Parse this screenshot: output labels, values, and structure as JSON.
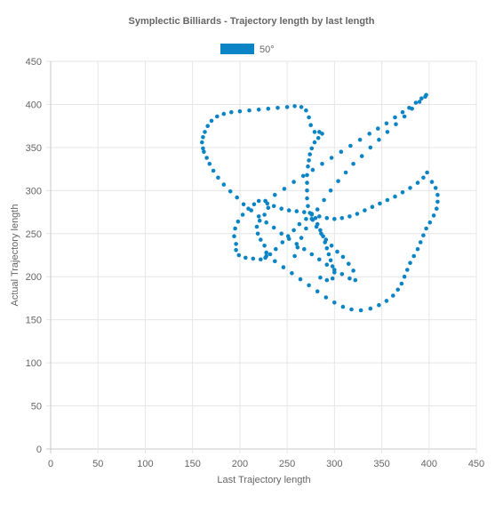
{
  "chart_data": {
    "type": "scatter",
    "title": "Symplectic Billiards - Trajectory length by last length",
    "xlabel": "Last Trajectory length",
    "ylabel": "Actual Trajectory length",
    "xlim": [
      0,
      450
    ],
    "ylim": [
      0,
      450
    ],
    "xticks": [
      "0",
      "50",
      "100",
      "150",
      "200",
      "250",
      "300",
      "350",
      "400",
      "450"
    ],
    "yticks": [
      "0",
      "50",
      "100",
      "150",
      "200",
      "250",
      "300",
      "350",
      "400",
      "450"
    ],
    "grid": true,
    "legend_position": "top",
    "colors": {
      "series": "#0b84c6"
    },
    "series": [
      {
        "name": "50°",
        "points": [
          [
            397,
            411
          ],
          [
            392,
            407
          ],
          [
            386,
            402
          ],
          [
            379,
            396
          ],
          [
            372,
            391
          ],
          [
            364,
            385
          ],
          [
            355,
            378
          ],
          [
            346,
            372
          ],
          [
            337,
            366
          ],
          [
            327,
            359
          ],
          [
            317,
            352
          ],
          [
            307,
            345
          ],
          [
            297,
            338
          ],
          [
            287,
            331
          ],
          [
            277,
            324
          ],
          [
            267,
            317
          ],
          [
            257,
            310
          ],
          [
            247,
            302
          ],
          [
            237,
            295
          ],
          [
            227,
            288
          ],
          [
            396,
            409
          ],
          [
            390,
            403
          ],
          [
            382,
            395
          ],
          [
            374,
            386
          ],
          [
            365,
            377
          ],
          [
            356,
            368
          ],
          [
            347,
            359
          ],
          [
            338,
            350
          ],
          [
            329,
            340
          ],
          [
            320,
            331
          ],
          [
            312,
            321
          ],
          [
            304,
            311
          ],
          [
            296,
            300
          ],
          [
            289,
            289
          ],
          [
            282,
            278
          ],
          [
            276,
            267
          ],
          [
            270,
            256
          ],
          [
            265,
            245
          ],
          [
            261,
            234
          ],
          [
            258,
            224
          ],
          [
            161,
            349
          ],
          [
            160,
            356
          ],
          [
            161,
            362
          ],
          [
            163,
            368
          ],
          [
            166,
            375
          ],
          [
            170,
            381
          ],
          [
            176,
            386
          ],
          [
            183,
            389
          ],
          [
            191,
            391
          ],
          [
            200,
            392
          ],
          [
            210,
            393
          ],
          [
            220,
            394
          ],
          [
            230,
            395
          ],
          [
            240,
            396
          ],
          [
            250,
            397
          ],
          [
            258,
            398
          ],
          [
            265,
            397
          ],
          [
            270,
            393
          ],
          [
            273,
            385
          ],
          [
            275,
            376
          ],
          [
            279,
            368
          ],
          [
            284,
            368
          ],
          [
            287,
            366
          ],
          [
            283,
            361
          ],
          [
            279,
            356
          ],
          [
            276,
            349
          ],
          [
            274,
            342
          ],
          [
            273,
            335
          ],
          [
            272,
            328
          ],
          [
            271,
            318
          ],
          [
            271,
            309
          ],
          [
            271,
            300
          ],
          [
            271,
            291
          ],
          [
            272,
            282
          ],
          [
            274,
            274
          ],
          [
            277,
            266
          ],
          [
            281,
            258
          ],
          [
            286,
            250
          ],
          [
            291,
            243
          ],
          [
            297,
            236
          ],
          [
            303,
            229
          ],
          [
            309,
            223
          ],
          [
            315,
            215
          ],
          [
            320,
            207
          ],
          [
            162,
            345
          ],
          [
            165,
            338
          ],
          [
            168,
            331
          ],
          [
            172,
            323
          ],
          [
            177,
            315
          ],
          [
            183,
            307
          ],
          [
            190,
            299
          ],
          [
            197,
            292
          ],
          [
            204,
            284
          ],
          [
            212,
            277
          ],
          [
            220,
            270
          ],
          [
            228,
            263
          ],
          [
            236,
            257
          ],
          [
            244,
            250
          ],
          [
            252,
            244
          ],
          [
            260,
            238
          ],
          [
            268,
            232
          ],
          [
            276,
            226
          ],
          [
            284,
            220
          ],
          [
            292,
            214
          ],
          [
            300,
            208
          ],
          [
            308,
            203
          ],
          [
            316,
            198
          ],
          [
            322,
            196
          ],
          [
            196,
            238
          ],
          [
            194,
            247
          ],
          [
            195,
            256
          ],
          [
            198,
            264
          ],
          [
            203,
            272
          ],
          [
            209,
            279
          ],
          [
            215,
            284
          ],
          [
            220,
            288
          ],
          [
            227,
            288
          ],
          [
            230,
            280
          ],
          [
            226,
            272
          ],
          [
            221,
            265
          ],
          [
            218,
            258
          ],
          [
            219,
            250
          ],
          [
            222,
            243
          ],
          [
            226,
            236
          ],
          [
            228,
            228
          ],
          [
            227,
            222
          ],
          [
            222,
            220
          ],
          [
            214,
            221
          ],
          [
            206,
            222
          ],
          [
            199,
            225
          ],
          [
            196,
            231
          ],
          [
            229,
            285
          ],
          [
            236,
            282
          ],
          [
            244,
            279
          ],
          [
            252,
            277
          ],
          [
            260,
            276
          ],
          [
            268,
            275
          ],
          [
            276,
            273
          ],
          [
            284,
            270
          ],
          [
            292,
            268
          ],
          [
            300,
            267
          ],
          [
            308,
            268
          ],
          [
            316,
            270
          ],
          [
            324,
            273
          ],
          [
            332,
            277
          ],
          [
            340,
            281
          ],
          [
            348,
            285
          ],
          [
            356,
            289
          ],
          [
            364,
            293
          ],
          [
            372,
            298
          ],
          [
            380,
            303
          ],
          [
            388,
            309
          ],
          [
            394,
            315
          ],
          [
            398,
            321
          ],
          [
            403,
            310
          ],
          [
            407,
            303
          ],
          [
            409,
            295
          ],
          [
            409,
            287
          ],
          [
            408,
            279
          ],
          [
            405,
            271
          ],
          [
            401,
            263
          ],
          [
            397,
            256
          ],
          [
            394,
            248
          ],
          [
            391,
            240
          ],
          [
            388,
            232
          ],
          [
            384,
            224
          ],
          [
            380,
            216
          ],
          [
            377,
            208
          ],
          [
            374,
            200
          ],
          [
            371,
            192
          ],
          [
            367,
            185
          ],
          [
            362,
            178
          ],
          [
            355,
            172
          ],
          [
            347,
            167
          ],
          [
            338,
            163
          ],
          [
            328,
            161
          ],
          [
            318,
            162
          ],
          [
            309,
            165
          ],
          [
            300,
            170
          ],
          [
            291,
            176
          ],
          [
            282,
            183
          ],
          [
            273,
            190
          ],
          [
            264,
            197
          ],
          [
            255,
            204
          ],
          [
            246,
            211
          ],
          [
            237,
            218
          ],
          [
            228,
            224
          ],
          [
            232,
            226
          ],
          [
            238,
            232
          ],
          [
            245,
            240
          ],
          [
            251,
            247
          ],
          [
            257,
            254
          ],
          [
            263,
            261
          ],
          [
            270,
            267
          ],
          [
            276,
            272
          ],
          [
            280,
            268
          ],
          [
            282,
            261
          ],
          [
            285,
            254
          ],
          [
            288,
            247
          ],
          [
            290,
            240
          ],
          [
            292,
            233
          ],
          [
            294,
            226
          ],
          [
            296,
            219
          ],
          [
            298,
            212
          ],
          [
            300,
            205
          ],
          [
            298,
            198
          ],
          [
            292,
            196
          ],
          [
            285,
            199
          ]
        ]
      }
    ]
  }
}
